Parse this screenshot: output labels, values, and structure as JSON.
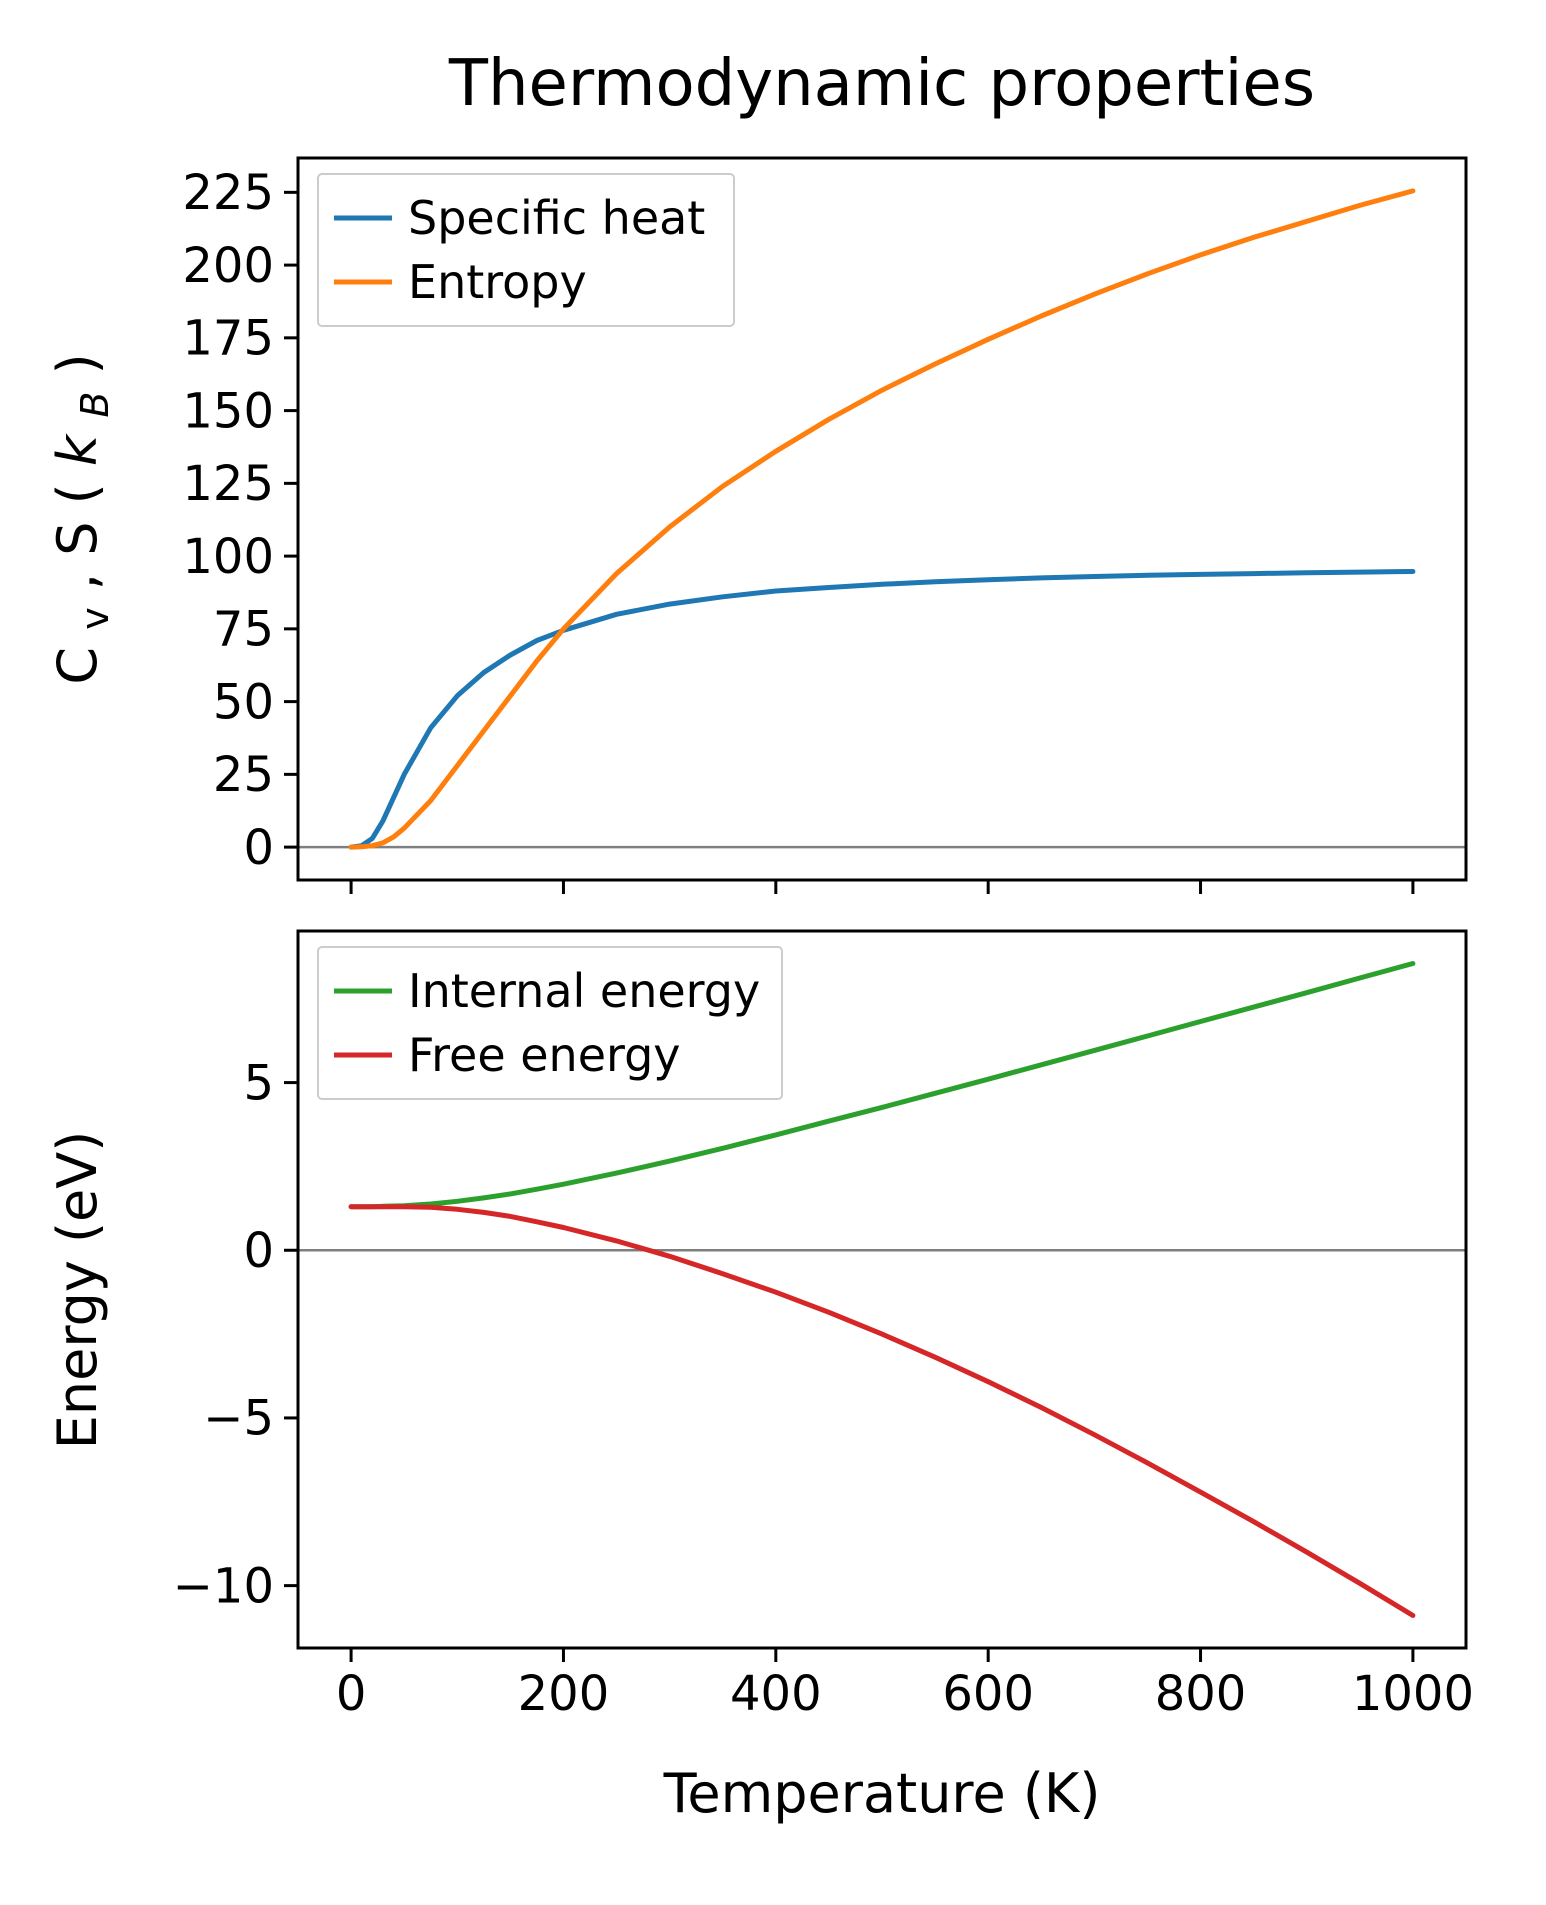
{
  "figure": {
    "title": "Thermodynamic properties",
    "background": "#ffffff",
    "colors": {
      "specific_heat": "#1f77b4",
      "entropy": "#ff7f0e",
      "internal_energy": "#2ca02c",
      "free_energy": "#d62728",
      "zero_line": "#7f7f7f",
      "axis": "#000000",
      "legend_border": "#cccccc"
    }
  },
  "chart_data": [
    {
      "type": "line",
      "title": "Thermodynamic properties",
      "xlabel": "",
      "ylabel": "Cv, S (kB)",
      "ylabel_parts": {
        "p0": "C",
        "p1": "v",
        "p2": ", S (",
        "p3": "k",
        "p4": "B",
        "p5": ")"
      },
      "xlim": [
        -50,
        1050
      ],
      "ylim": [
        -11.3,
        236.8
      ],
      "xticks": [
        0,
        200,
        400,
        600,
        800,
        1000
      ],
      "xtick_labels": [
        "0",
        "200",
        "400",
        "600",
        "800",
        "1000"
      ],
      "show_x_labels": false,
      "yticks": [
        0,
        25,
        50,
        75,
        100,
        125,
        150,
        175,
        200,
        225
      ],
      "ytick_labels": [
        "0",
        "25",
        "50",
        "75",
        "100",
        "125",
        "150",
        "175",
        "200",
        "225"
      ],
      "zero_line": 0,
      "grid": false,
      "legend_position": "upper left",
      "x": [
        0,
        10,
        20,
        30,
        40,
        50,
        75,
        100,
        125,
        150,
        175,
        200,
        250,
        300,
        350,
        400,
        450,
        500,
        550,
        600,
        650,
        700,
        750,
        800,
        850,
        900,
        950,
        1000
      ],
      "series": [
        {
          "name": "Specific heat",
          "color": "#1f77b4",
          "values": [
            0,
            0.5,
            3,
            9,
            17,
            25,
            41,
            52,
            60,
            66,
            71,
            74.5,
            80,
            83.5,
            86,
            88,
            89.2,
            90.3,
            91.2,
            91.9,
            92.5,
            93,
            93.4,
            93.7,
            94,
            94.3,
            94.5,
            94.7
          ]
        },
        {
          "name": "Entropy",
          "color": "#ff7f0e",
          "values": [
            0,
            0.1,
            0.5,
            1.5,
            3.5,
            6.5,
            16,
            28,
            40,
            52,
            64,
            75,
            94,
            110,
            124,
            136,
            147,
            157,
            166,
            174.5,
            182.5,
            190,
            197,
            203.5,
            209.5,
            215,
            220.5,
            225.5
          ]
        }
      ]
    },
    {
      "type": "line",
      "title": "",
      "xlabel": "Temperature (K)",
      "ylabel": "Energy (eV)",
      "xlim": [
        -50,
        1050
      ],
      "ylim": [
        -11.86,
        9.52
      ],
      "xticks": [
        0,
        200,
        400,
        600,
        800,
        1000
      ],
      "xtick_labels": [
        "0",
        "200",
        "400",
        "600",
        "800",
        "1000"
      ],
      "show_x_labels": true,
      "yticks": [
        -10,
        -5,
        0,
        5
      ],
      "ytick_labels": [
        "−10",
        "−5",
        "0",
        "5"
      ],
      "zero_line": 0,
      "grid": false,
      "legend_position": "upper left",
      "x": [
        0,
        10,
        20,
        30,
        40,
        50,
        75,
        100,
        125,
        150,
        175,
        200,
        250,
        300,
        350,
        400,
        450,
        500,
        550,
        600,
        650,
        700,
        750,
        800,
        850,
        900,
        950,
        1000
      ],
      "series": [
        {
          "name": "Internal energy",
          "color": "#2ca02c",
          "values": [
            1.3,
            1.3,
            1.3,
            1.31,
            1.32,
            1.33,
            1.38,
            1.46,
            1.56,
            1.68,
            1.82,
            1.97,
            2.3,
            2.66,
            3.04,
            3.44,
            3.85,
            4.26,
            4.68,
            5.1,
            5.53,
            5.96,
            6.39,
            6.82,
            7.25,
            7.68,
            8.12,
            8.55
          ]
        },
        {
          "name": "Free energy",
          "color": "#d62728",
          "values": [
            1.3,
            1.3,
            1.3,
            1.3,
            1.3,
            1.3,
            1.28,
            1.22,
            1.13,
            1.01,
            0.85,
            0.68,
            0.28,
            -0.18,
            -0.7,
            -1.25,
            -1.85,
            -2.5,
            -3.19,
            -3.92,
            -4.69,
            -5.5,
            -6.34,
            -7.21,
            -8.09,
            -9.0,
            -9.93,
            -10.89
          ]
        }
      ]
    }
  ]
}
